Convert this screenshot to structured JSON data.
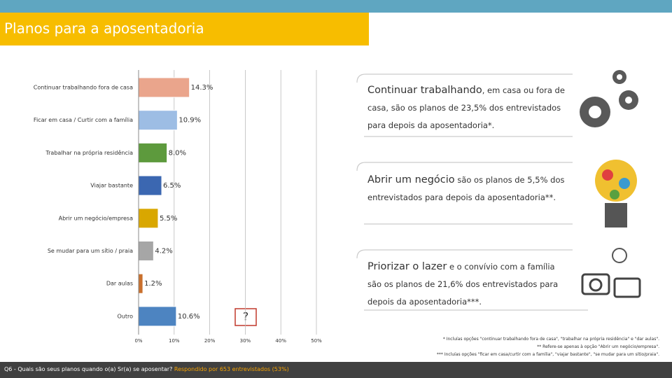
{
  "chart_data": {
    "type": "hbar",
    "title": "Planos para a aposentadoria",
    "categories": [
      "Continuar trabalhando fora de casa",
      "Ficar em casa / Curtir com a família",
      "Trabalhar na própria residência",
      "Viajar bastante",
      "Abrir um negócio/empresa",
      "Se mudar para um sítio / praia",
      "Dar aulas",
      "Outro"
    ],
    "values": [
      14.3,
      10.9,
      8.0,
      6.5,
      5.5,
      4.2,
      1.2,
      10.6
    ],
    "value_labels": [
      "14.3%",
      "10.9%",
      "8.0%",
      "6.5%",
      "5.5%",
      "4.2%",
      "1.2%",
      "10.6%"
    ],
    "colors": [
      "#eaa58c",
      "#9dbde4",
      "#5d9a3d",
      "#3b67b1",
      "#d9a700",
      "#a6a6a6",
      "#c9702d",
      "#4d84c1"
    ],
    "xlim": [
      0,
      50
    ],
    "xticks": [
      {
        "value": 0,
        "label": "0%"
      },
      {
        "value": 10,
        "label": "10%"
      },
      {
        "value": 20,
        "label": "20%"
      },
      {
        "value": 30,
        "label": "30%"
      },
      {
        "value": 40,
        "label": "40%"
      },
      {
        "value": 50,
        "label": "50%"
      }
    ],
    "grid": true
  },
  "notes": [
    {
      "heading": "Continuar trabalhando",
      "text": ", em casa ou fora de casa, são os planos de 23,5% dos entrevistados para depois da aposentadoria*."
    },
    {
      "heading": "Abrir um negócio",
      "text": " são os planos de 5,5% dos entrevistados para depois da aposentadoria**."
    },
    {
      "heading": "Priorizar o lazer",
      "text": " e o convívio com a família são os planos de 21,6% dos entrevistados para depois da aposentadoria***."
    }
  ],
  "question_mark": "?",
  "footnotes": [
    "* Incluías opções \"continuar trabalhando fora de casa\", \"trabalhar na própria residência\" e \"dar aulas\".",
    "** Refere-se apenas à opção \"Abrir um negócio/empresa\".",
    "*** Incluías opções \"ficar em casa/curtir com a família\", \"viajar bastante\", \"se mudar para um sítio/praia\"."
  ],
  "footer": {
    "question": "Q6 - Quais são seus planos quando o(a) Sr(a) se aposentar? ",
    "respondents": "Respondido por 653 entrevistados (53%)"
  }
}
